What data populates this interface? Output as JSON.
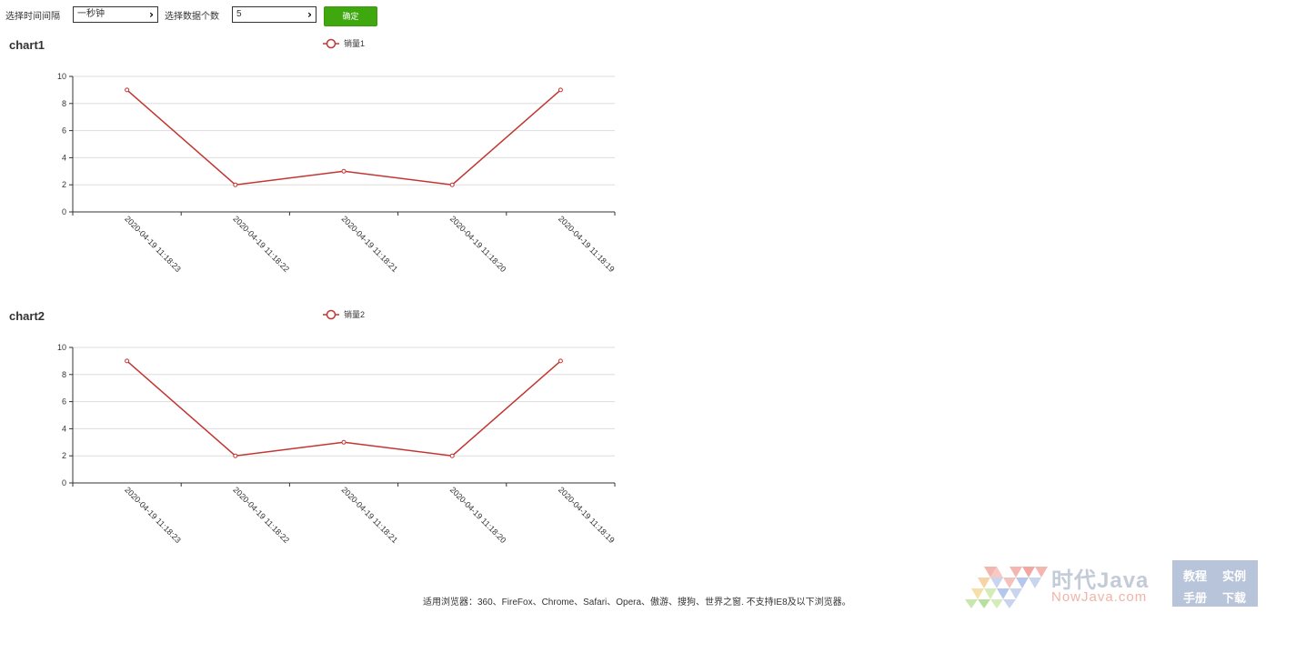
{
  "toolbar": {
    "interval_label": "选择时间间隔",
    "interval_value": "一秒钟",
    "count_label": "选择数据个数",
    "count_value": "5",
    "confirm_label": "确定"
  },
  "charts": [
    {
      "title": "chart1",
      "legend": "销量1"
    },
    {
      "title": "chart2",
      "legend": "销量2"
    }
  ],
  "chart_data": [
    {
      "type": "line",
      "title": "chart1",
      "categories": [
        "2020-04-19 11:18:23",
        "2020-04-19 11:18:22",
        "2020-04-19 11:18:21",
        "2020-04-19 11:18:20",
        "2020-04-19 11:18:19"
      ],
      "series": [
        {
          "name": "销量1",
          "values": [
            9,
            2,
            3,
            2,
            9
          ]
        }
      ],
      "ylim": [
        0,
        10
      ],
      "yticks": [
        0,
        2,
        4,
        6,
        8,
        10
      ],
      "grid": true,
      "legend_position": "top-center",
      "color": "#c23531"
    },
    {
      "type": "line",
      "title": "chart2",
      "categories": [
        "2020-04-19 11:18:23",
        "2020-04-19 11:18:22",
        "2020-04-19 11:18:21",
        "2020-04-19 11:18:20",
        "2020-04-19 11:18:19"
      ],
      "series": [
        {
          "name": "销量2",
          "values": [
            9,
            2,
            3,
            2,
            9
          ]
        }
      ],
      "ylim": [
        0,
        10
      ],
      "yticks": [
        0,
        2,
        4,
        6,
        8,
        10
      ],
      "grid": true,
      "legend_position": "top-center",
      "color": "#c23531"
    }
  ],
  "footer": {
    "browsers": "适用浏览器：360、FireFox、Chrome、Safari、Opera、傲游、搜狗、世界之窗. 不支持IE8及以下浏览器。"
  },
  "watermark": {
    "title": "时代Java",
    "subtitle": "NowJava.com",
    "links": [
      "教程",
      "实例",
      "手册",
      "下载"
    ]
  }
}
